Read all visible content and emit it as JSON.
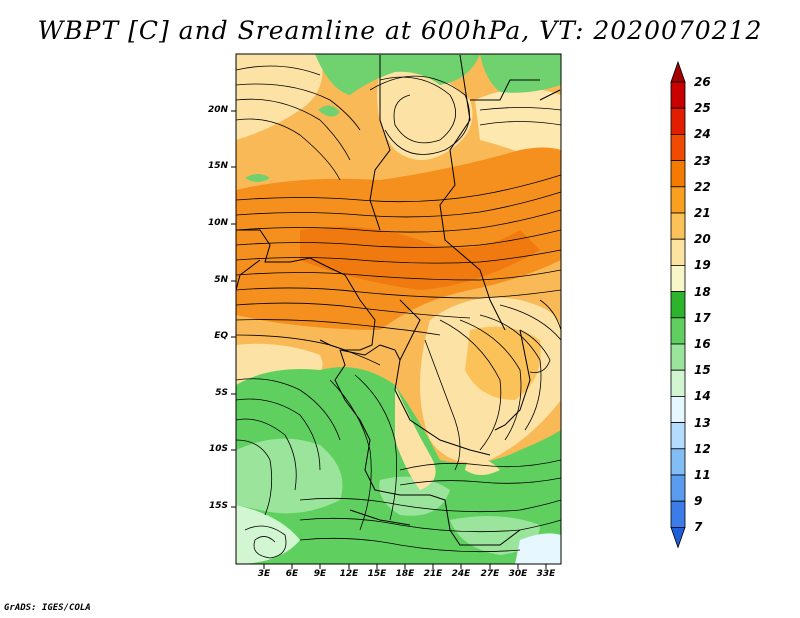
{
  "title": "WBPT [C] and Sreamline at 600hPa, VT: 2020070212",
  "credit": "GrADS: IGES/COLA",
  "lat_labels": [
    "20N",
    "15N",
    "10N",
    "5N",
    "EQ",
    "5S",
    "10S",
    "15S"
  ],
  "lon_labels": [
    "3E",
    "6E",
    "9E",
    "12E",
    "15E",
    "18E",
    "21E",
    "24E",
    "27E",
    "30E",
    "33E"
  ],
  "colorbar": {
    "labels": [
      "26",
      "25",
      "24",
      "23",
      "22",
      "21",
      "20",
      "19",
      "18",
      "17",
      "16",
      "15",
      "14",
      "13",
      "12",
      "11",
      "9",
      "7"
    ],
    "colors": [
      "#a50000",
      "#c80000",
      "#e11e00",
      "#f04b00",
      "#f57a00",
      "#f9a020",
      "#fbc25a",
      "#fde3a0",
      "#f7f7c8",
      "#2cb52c",
      "#5fd05f",
      "#9be49b",
      "#d2f5d2",
      "#e6f7ff",
      "#b4dcff",
      "#82bef5",
      "#5a9cf0",
      "#3c7ce8",
      "#1e5fd8"
    ]
  }
}
